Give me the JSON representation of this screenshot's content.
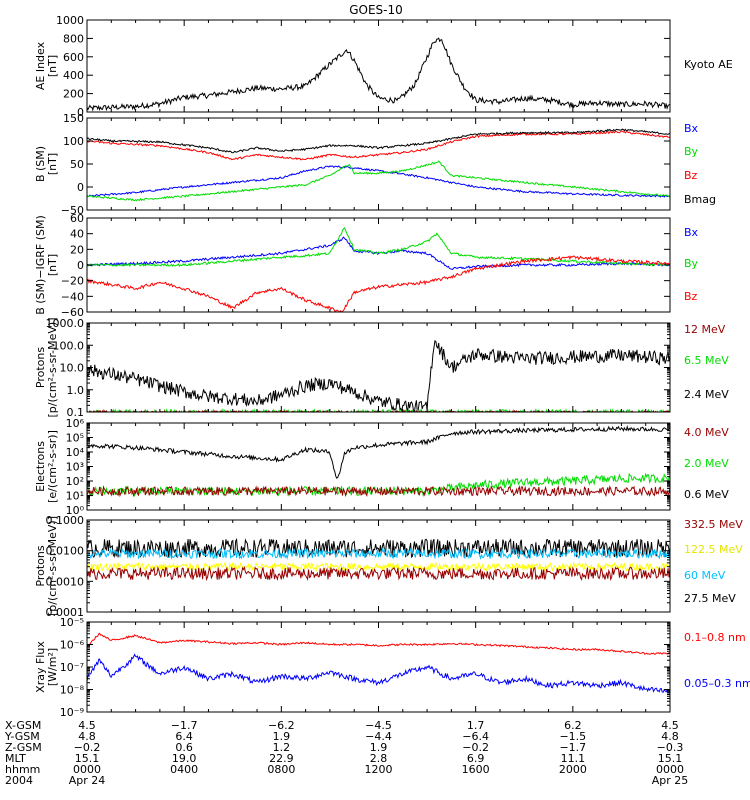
{
  "chart_data": [
    {
      "type": "line",
      "title": "GOES-10",
      "ylabel": "AE Index\n[nT]",
      "ylim": [
        0,
        1000
      ],
      "yscale": "linear",
      "yticks": [
        0,
        200,
        400,
        600,
        800,
        1000
      ],
      "ytick_labels": [
        "0",
        "200",
        "400",
        "600",
        "800",
        "1000"
      ],
      "legend": [
        {
          "label": "Kyoto AE",
          "color": "#000000"
        }
      ],
      "series": [
        {
          "name": "Kyoto AE",
          "color": "#000000",
          "noise": 30,
          "x": [
            0,
            1,
            2,
            3,
            4,
            5,
            6,
            7,
            8,
            9,
            10,
            10.7,
            11,
            11.5,
            12,
            12.8,
            13.5,
            14.3,
            14.6,
            15,
            15.5,
            16,
            17,
            18,
            19,
            20,
            21,
            22,
            23,
            24
          ],
          "y": [
            40,
            50,
            60,
            90,
            160,
            180,
            220,
            260,
            250,
            280,
            520,
            680,
            560,
            300,
            150,
            120,
            300,
            780,
            800,
            520,
            280,
            130,
            110,
            150,
            130,
            80,
            100,
            80,
            90,
            60
          ]
        }
      ]
    },
    {
      "type": "line",
      "ylabel": "B (SM)\n[nT]",
      "ylim": [
        -50,
        150
      ],
      "yscale": "linear",
      "yticks": [
        -50,
        0,
        50,
        100,
        150
      ],
      "ytick_labels": [
        "−50",
        "0",
        "50",
        "100",
        "150"
      ],
      "legend": [
        {
          "label": "Bx",
          "color": "#0000ff"
        },
        {
          "label": "By",
          "color": "#00dd00"
        },
        {
          "label": "Bz",
          "color": "#ff0000"
        },
        {
          "label": "Bmag",
          "color": "#000000"
        }
      ],
      "series": [
        {
          "name": "Bx",
          "color": "#0000ff",
          "noise": 2,
          "x": [
            0,
            2,
            4,
            6,
            8,
            9,
            10,
            11,
            12,
            13,
            14,
            15,
            16,
            18,
            20,
            22,
            24
          ],
          "y": [
            -20,
            -12,
            0,
            10,
            20,
            35,
            45,
            42,
            35,
            28,
            20,
            10,
            0,
            -10,
            -15,
            -18,
            -20
          ]
        },
        {
          "name": "By",
          "color": "#00dd00",
          "noise": 2,
          "x": [
            0,
            2,
            4,
            6,
            8,
            9,
            10,
            10.8,
            11,
            12,
            13,
            14,
            14.5,
            15,
            16,
            18,
            20,
            22,
            24
          ],
          "y": [
            -20,
            -28,
            -20,
            -10,
            0,
            5,
            25,
            50,
            30,
            30,
            35,
            48,
            55,
            25,
            20,
            10,
            0,
            -10,
            -20
          ]
        },
        {
          "name": "Bz",
          "color": "#ff0000",
          "noise": 2,
          "x": [
            0,
            1,
            3,
            5,
            6,
            7,
            8,
            9,
            10,
            11,
            12,
            13,
            14,
            15,
            16,
            18,
            20,
            22,
            24
          ],
          "y": [
            100,
            95,
            90,
            75,
            60,
            70,
            65,
            60,
            70,
            65,
            70,
            75,
            82,
            98,
            110,
            115,
            115,
            120,
            108
          ]
        },
        {
          "name": "Bmag",
          "color": "#000000",
          "noise": 2,
          "x": [
            0,
            1,
            3,
            5,
            6,
            7,
            8,
            9,
            10,
            11,
            12,
            13,
            14,
            15,
            16,
            18,
            20,
            22,
            24
          ],
          "y": [
            105,
            100,
            98,
            85,
            75,
            85,
            78,
            82,
            90,
            90,
            85,
            90,
            95,
            105,
            115,
            118,
            118,
            125,
            115
          ]
        }
      ]
    },
    {
      "type": "line",
      "ylabel": "B (SM)−IGRF (SM)\n[nT]",
      "ylim": [
        -60,
        60
      ],
      "yscale": "linear",
      "yticks": [
        -60,
        -40,
        -20,
        0,
        20,
        40,
        60
      ],
      "ytick_labels": [
        "−60",
        "−40",
        "−20",
        "0",
        "20",
        "40",
        "60"
      ],
      "legend": [
        {
          "label": "Bx",
          "color": "#0000ff"
        },
        {
          "label": "By",
          "color": "#00dd00"
        },
        {
          "label": "Bz",
          "color": "#ff0000"
        }
      ],
      "series": [
        {
          "name": "Bx",
          "color": "#0000ff",
          "noise": 1.5,
          "x": [
            0,
            2,
            4,
            6,
            8,
            9,
            10,
            10.6,
            11,
            12,
            13,
            14,
            15,
            16,
            18,
            20,
            22,
            24
          ],
          "y": [
            0,
            2,
            5,
            10,
            15,
            20,
            25,
            35,
            18,
            15,
            18,
            15,
            -5,
            -2,
            0,
            0,
            2,
            0
          ]
        },
        {
          "name": "By",
          "color": "#00dd00",
          "noise": 1.5,
          "x": [
            0,
            2,
            4,
            6,
            8,
            9,
            10,
            10.6,
            11,
            12,
            13,
            14,
            14.4,
            15,
            16,
            18,
            20,
            22,
            24
          ],
          "y": [
            0,
            0,
            0,
            5,
            10,
            12,
            15,
            48,
            20,
            15,
            20,
            30,
            40,
            15,
            10,
            8,
            5,
            2,
            0
          ]
        },
        {
          "name": "Bz",
          "color": "#ff0000",
          "noise": 2,
          "x": [
            0,
            1,
            2,
            3,
            4,
            5,
            6,
            7,
            8,
            9,
            10,
            10.5,
            11,
            12,
            13,
            14,
            15,
            16,
            18,
            20,
            22,
            24
          ],
          "y": [
            -20,
            -25,
            -30,
            -22,
            -30,
            -40,
            -55,
            -35,
            -30,
            -45,
            -55,
            -60,
            -35,
            -28,
            -25,
            -22,
            -15,
            -5,
            5,
            10,
            5,
            2
          ]
        }
      ]
    },
    {
      "type": "line",
      "ylabel": "Protons\n[p/(cm²-s-sr-MeV)]",
      "ylim": [
        0.1,
        1000
      ],
      "yscale": "log",
      "yticks": [
        0.1,
        1,
        10,
        100,
        1000
      ],
      "ytick_labels": [
        "0.1",
        "1.0",
        "10.0",
        "100.0",
        "1000.0"
      ],
      "legend": [
        {
          "label": "12 MeV",
          "color": "#990000"
        },
        {
          "label": "6.5 MeV",
          "color": "#00dd00"
        },
        {
          "label": "2.4 MeV",
          "color": "#000000"
        }
      ],
      "series": [
        {
          "name": "2.4 MeV",
          "color": "#000000",
          "noise": 0.3,
          "x": [
            0,
            1,
            2,
            3,
            4,
            5,
            6,
            7,
            8,
            9,
            10,
            11,
            12,
            13,
            14,
            14.3,
            14.6,
            15,
            16,
            18,
            20,
            22,
            24
          ],
          "y": [
            8,
            5,
            3,
            1.5,
            0.8,
            0.5,
            0.4,
            0.3,
            0.6,
            1.5,
            2,
            0.8,
            0.3,
            0.2,
            0.15,
            200,
            50,
            10,
            40,
            25,
            30,
            35,
            25
          ]
        },
        {
          "name": "6.5 MeV",
          "color": "#00dd00",
          "noise": 0.1,
          "x": [
            0,
            24
          ],
          "y": [
            0.1,
            0.1
          ]
        },
        {
          "name": "12 MeV",
          "color": "#990000",
          "noise": 0.05,
          "x": [
            0,
            24
          ],
          "y": [
            0.1,
            0.1
          ]
        }
      ]
    },
    {
      "type": "line",
      "ylabel": "Electrons\n[e/(cm²-s-sr)]",
      "ylim": [
        1,
        1000000
      ],
      "yscale": "log",
      "yticks": [
        1,
        10,
        100,
        1000,
        10000,
        100000,
        1000000
      ],
      "ytick_labels": [
        "10⁰",
        "10¹",
        "10²",
        "10³",
        "10⁴",
        "10⁵",
        "10⁶"
      ],
      "legend": [
        {
          "label": "4.0 MeV",
          "color": "#990000"
        },
        {
          "label": "2.0 MeV",
          "color": "#00dd00"
        },
        {
          "label": "0.6 MeV",
          "color": "#000000"
        }
      ],
      "series": [
        {
          "name": "0.6 MeV",
          "color": "#000000",
          "noise": 0.15,
          "x": [
            0,
            2,
            4,
            6,
            8,
            9,
            10,
            10.3,
            10.6,
            11,
            12,
            13,
            14,
            15,
            16,
            18,
            20,
            22,
            24
          ],
          "y": [
            30000,
            20000,
            10000,
            5000,
            3000,
            15000,
            10000,
            100,
            8000,
            20000,
            30000,
            40000,
            50000,
            200000,
            250000,
            300000,
            350000,
            400000,
            350000
          ]
        },
        {
          "name": "2.0 MeV",
          "color": "#00dd00",
          "noise": 0.3,
          "x": [
            0,
            14,
            16,
            18,
            20,
            22,
            24
          ],
          "y": [
            20,
            20,
            50,
            80,
            100,
            150,
            150
          ]
        },
        {
          "name": "4.0 MeV",
          "color": "#990000",
          "noise": 0.3,
          "x": [
            0,
            24
          ],
          "y": [
            20,
            20
          ]
        }
      ]
    },
    {
      "type": "line",
      "ylabel": "Protons\n[p/(cm²-s-sr-MeV)]",
      "ylim": [
        0.0001,
        0.1
      ],
      "yscale": "log",
      "yticks": [
        0.0001,
        0.001,
        0.01,
        0.1
      ],
      "ytick_labels": [
        "0.0001",
        "0.0010",
        "0.0100",
        "0.1000"
      ],
      "legend": [
        {
          "label": "332.5 MeV",
          "color": "#990000"
        },
        {
          "label": "122.5 MeV",
          "color": "#ffff00"
        },
        {
          "label": "60 MeV",
          "color": "#00bfff"
        },
        {
          "label": "27.5 MeV",
          "color": "#000000"
        }
      ],
      "series": [
        {
          "name": "27.5 MeV",
          "color": "#000000",
          "noise": 0.3,
          "x": [
            0,
            24
          ],
          "y": [
            0.012,
            0.012
          ]
        },
        {
          "name": "60 MeV",
          "color": "#00bfff",
          "noise": 0.15,
          "x": [
            0,
            24
          ],
          "y": [
            0.008,
            0.008
          ]
        },
        {
          "name": "122.5 MeV",
          "color": "#ffff00",
          "noise": 0.12,
          "x": [
            0,
            24
          ],
          "y": [
            0.003,
            0.003
          ]
        },
        {
          "name": "332.5 MeV",
          "color": "#990000",
          "noise": 0.2,
          "x": [
            0,
            24
          ],
          "y": [
            0.0018,
            0.0018
          ]
        }
      ]
    },
    {
      "type": "line",
      "ylabel": "Xray Flux\n[W/m²]",
      "ylim": [
        1e-09,
        1e-05
      ],
      "yscale": "log",
      "yticks": [
        1e-09,
        1e-08,
        1e-07,
        1e-06,
        1e-05
      ],
      "ytick_labels": [
        "10⁻⁹",
        "10⁻⁸",
        "10⁻⁷",
        "10⁻⁶",
        "10⁻⁵"
      ],
      "legend": [
        {
          "label": "0.1–0.8 nm",
          "color": "#ff0000"
        },
        {
          "label": "0.05–0.3 nm",
          "color": "#0000ff"
        }
      ],
      "series": [
        {
          "name": "0.1–0.8 nm",
          "color": "#ff0000",
          "noise": 0.04,
          "x": [
            0,
            0.5,
            1,
            2,
            3,
            4,
            5,
            6,
            7,
            8,
            9,
            10,
            11,
            12,
            13,
            14,
            15,
            16,
            17,
            18,
            19,
            20,
            21,
            22,
            23,
            24
          ],
          "y": [
            8e-07,
            3e-06,
            1.5e-06,
            2.5e-06,
            1.2e-06,
            1.5e-06,
            1.3e-06,
            1.1e-06,
            1.2e-06,
            1e-06,
            1.2e-06,
            1e-06,
            1e-06,
            9e-07,
            1e-06,
            1e-06,
            1.1e-06,
            1e-06,
            9e-07,
            8e-07,
            7e-07,
            6e-07,
            6e-07,
            5e-07,
            4e-07,
            4e-07
          ]
        },
        {
          "name": "0.05–0.3 nm",
          "color": "#0000ff",
          "noise": 0.12,
          "x": [
            0,
            0.5,
            1,
            2,
            3,
            4,
            5,
            6,
            7,
            8,
            9,
            10,
            11,
            12,
            13,
            14,
            15,
            16,
            17,
            18,
            19,
            20,
            21,
            22,
            23,
            24
          ],
          "y": [
            3e-08,
            2e-07,
            4e-08,
            3e-07,
            5e-08,
            1e-07,
            3e-08,
            5e-08,
            2e-08,
            4e-08,
            3e-08,
            6e-08,
            3e-08,
            2e-08,
            5e-08,
            1e-07,
            3e-08,
            5e-08,
            2e-08,
            3e-08,
            1.5e-08,
            2e-08,
            1.5e-08,
            2e-08,
            1e-08,
            8e-09
          ]
        }
      ]
    }
  ],
  "x_axis": {
    "xlim": [
      0,
      24
    ],
    "major_ticks": [
      0,
      4,
      8,
      12,
      16,
      20,
      24
    ],
    "rows": [
      {
        "label": "X-GSM",
        "values": [
          "4.5",
          "−1.7",
          "−6.2",
          "−4.5",
          "1.7",
          "6.2",
          "4.5"
        ]
      },
      {
        "label": "Y-GSM",
        "values": [
          "4.8",
          "6.4",
          "1.9",
          "−4.4",
          "−6.4",
          "−1.5",
          "4.8"
        ]
      },
      {
        "label": "Z-GSM",
        "values": [
          "−0.2",
          "0.6",
          "1.2",
          "1.9",
          "−0.2",
          "−1.7",
          "−0.3"
        ]
      },
      {
        "label": "MLT",
        "values": [
          "15.1",
          "19.0",
          "22.9",
          "2.8",
          "6.9",
          "11.1",
          "15.1"
        ]
      },
      {
        "label": "hhmm",
        "values": [
          "0000",
          "0400",
          "0800",
          "1200",
          "1600",
          "2000",
          "0000"
        ]
      },
      {
        "label": "2004",
        "values": [
          "Apr 24",
          "",
          "",
          "",
          "",
          "",
          "Apr 25"
        ]
      }
    ]
  }
}
